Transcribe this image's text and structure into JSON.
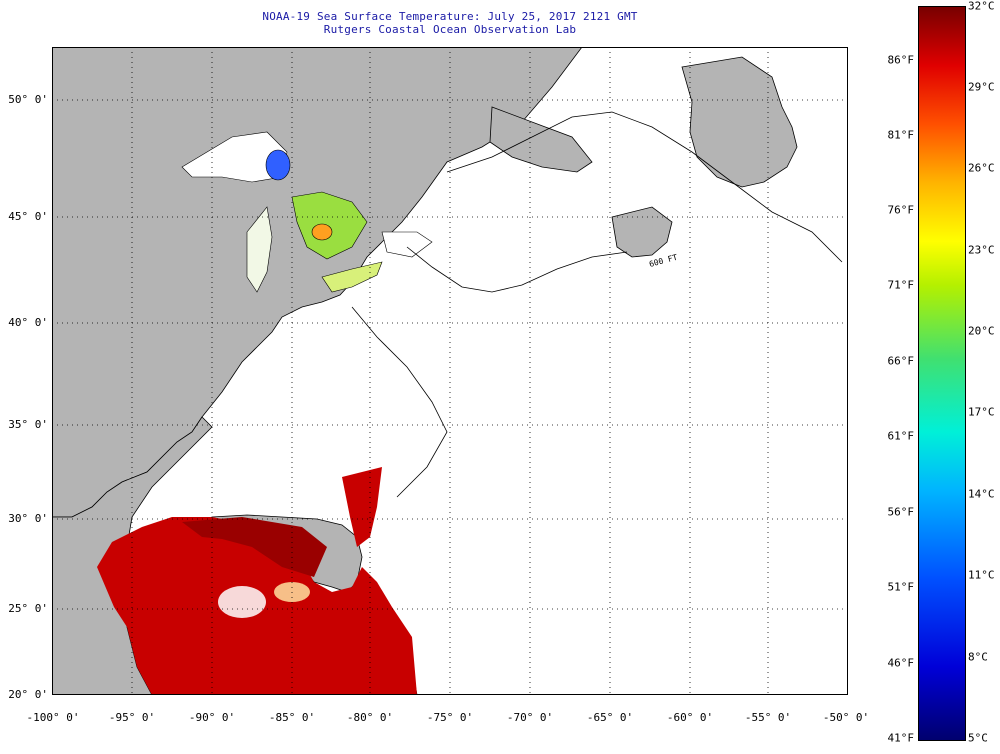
{
  "header": {
    "line1": "NOAA-19 Sea Surface Temperature:  July 25, 2017 2121 GMT",
    "line2": "Rutgers Coastal Ocean Observation Lab"
  },
  "map": {
    "lat_labels": [
      "50° 0'",
      "45° 0'",
      "40° 0'",
      "35° 0'",
      "30° 0'",
      "25° 0'",
      "20° 0'"
    ],
    "lon_labels": [
      "-100° 0'",
      "-95° 0'",
      "-90° 0'",
      "-85° 0'",
      "-80° 0'",
      "-75° 0'",
      "-70° 0'",
      "-65° 0'",
      "-60° 0'",
      "-55° 0'",
      "-50° 0'"
    ],
    "depth_contour_label": "600 FT",
    "colors": {
      "land": "#b4b4b4",
      "no_data": "#ffffff",
      "gulf_warm": "#c80000",
      "gulf_hot": "#9a0000"
    }
  },
  "colorbar": {
    "celsius": [
      "32°C",
      "29°C",
      "26°C",
      "23°C",
      "20°C",
      "17°C",
      "14°C",
      "11°C",
      "8°C",
      "5°C"
    ],
    "fahrenheit": [
      "86°F",
      "81°F",
      "76°F",
      "71°F",
      "66°F",
      "61°F",
      "56°F",
      "51°F",
      "46°F",
      "41°F"
    ]
  }
}
